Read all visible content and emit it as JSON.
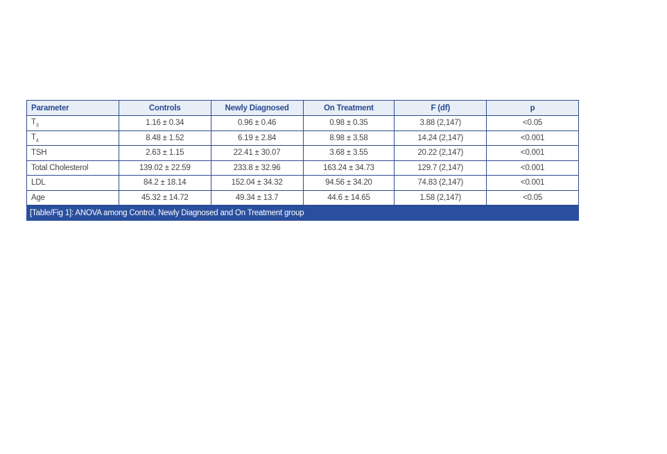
{
  "table": {
    "headers": [
      "Parameter",
      "Controls",
      "Newly Diagnosed",
      "On Treatment",
      "F (df)",
      "p"
    ],
    "rows": [
      {
        "param": "T",
        "sub": "3",
        "cells": [
          "1.16 ± 0.34",
          "0.96 ± 0.46",
          "0.98 ± 0.35",
          "3.88 (2,147)",
          "<0.05"
        ]
      },
      {
        "param": "T",
        "sub": "4",
        "cells": [
          "8.48 ± 1.52",
          "6.19 ± 2.84",
          "8.98 ± 3.58",
          "14.24 (2,147)",
          "<0.001"
        ]
      },
      {
        "param": "TSH",
        "sub": "",
        "cells": [
          "2.63 ± 1.15",
          "22.41 ± 30.07",
          "3.68 ± 3.55",
          "20.22 (2,147)",
          "<0.001"
        ]
      },
      {
        "param": "Total Cholesterol",
        "sub": "",
        "cells": [
          "139.02 ± 22.59",
          "233.8 ± 32.96",
          "163.24 ± 34.73",
          "129.7 (2,147)",
          "<0.001"
        ]
      },
      {
        "param": "LDL",
        "sub": "",
        "cells": [
          "84.2 ± 18.14",
          "152.04 ± 34.32",
          "94.56 ± 34.20",
          "74.83 (2,147)",
          "<0.001"
        ]
      },
      {
        "param": "Age",
        "sub": "",
        "cells": [
          "45.32 ± 14.72",
          "49.34 ± 13.7",
          "44.6 ± 14.65",
          "1.58 (2,147)",
          "<0.05"
        ]
      }
    ],
    "caption": "[Table/Fig 1]: ANOVA among Control, Newly Diagnosed and On Treatment group"
  },
  "colors": {
    "border": "#2c4a8c",
    "header_bg": "#e7eef8",
    "header_text": "#2b4a8f",
    "caption_bg": "#2a4f9e"
  }
}
